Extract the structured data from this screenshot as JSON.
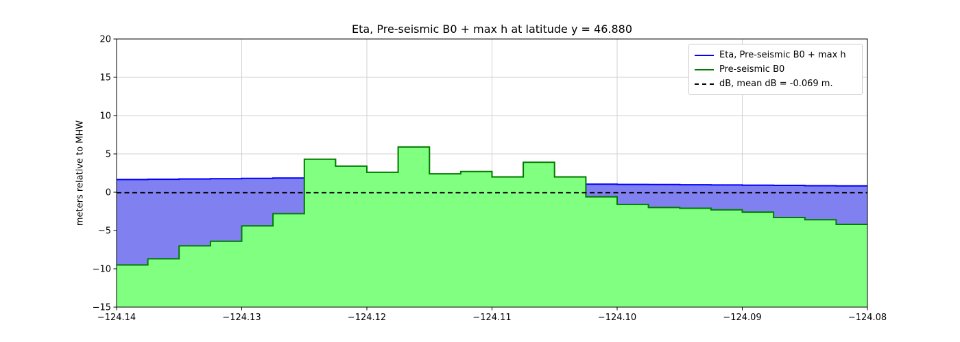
{
  "title": "Eta, Pre-seismic B0 + max h at latitude y = 46.880",
  "ylabel": "meters relative to MHW",
  "legend": [
    {
      "label": "Eta, Pre-seismic B0 + max h",
      "color": "#0000ff",
      "dash": false
    },
    {
      "label": "Pre-seismic B0",
      "color": "#007a00",
      "dash": false
    },
    {
      "label": "dB, mean dB = -0.069 m.",
      "color": "#000000",
      "dash": true
    }
  ],
  "chart_data": {
    "type": "area",
    "title": "Eta, Pre-seismic B0 + max h at latitude y = 46.880",
    "xlabel": "",
    "ylabel": "meters relative to MHW",
    "xlim": [
      -124.14,
      -124.08
    ],
    "ylim": [
      -15,
      20
    ],
    "grid": true,
    "legend_position": "upper right",
    "x_start": -124.14,
    "cell_width": 0.0025,
    "xticks": [
      -124.14,
      -124.13,
      -124.12,
      -124.11,
      -124.1,
      -124.09,
      -124.08
    ],
    "xtick_labels": [
      "−124.14",
      "−124.13",
      "−124.12",
      "−124.11",
      "−124.10",
      "−124.09",
      "−124.08"
    ],
    "yticks": [
      -15,
      -10,
      -5,
      0,
      5,
      10,
      15,
      20
    ],
    "ytick_labels": [
      "−15",
      "−10",
      "−5",
      "0",
      "5",
      "10",
      "15",
      "20"
    ],
    "series": [
      {
        "name": "Pre-seismic B0 (topography steps, one value per 0.0025° cell)",
        "values": [
          -9.5,
          -8.7,
          -7.0,
          -6.4,
          -4.4,
          -2.8,
          4.3,
          3.4,
          2.6,
          5.9,
          2.4,
          2.7,
          2.0,
          3.9,
          2.0,
          -0.6,
          -1.6,
          -2.0,
          -2.1,
          -2.3,
          -2.6,
          -3.3,
          -3.6,
          -4.2
        ]
      },
      {
        "name": "Eta, Pre-seismic B0 + max h (null where dry land)",
        "values": [
          1.65,
          1.69,
          1.73,
          1.77,
          1.81,
          1.85,
          null,
          null,
          null,
          null,
          null,
          null,
          null,
          null,
          null,
          1.05,
          1.02,
          1.0,
          0.97,
          0.95,
          0.92,
          0.89,
          0.85,
          0.82
        ]
      }
    ],
    "db_value": -0.069,
    "colors": {
      "water_fill": "#8080f0",
      "land_fill": "#80ff80",
      "eta_line": "#0000ff",
      "b0_line": "#007a00",
      "db_line": "#000000",
      "grid": "#d0d0d0",
      "axes": "#000000"
    }
  }
}
